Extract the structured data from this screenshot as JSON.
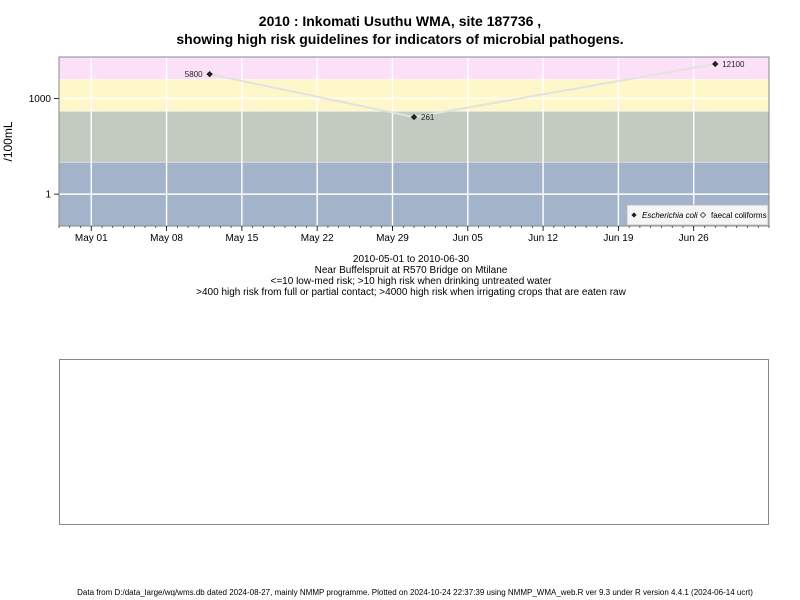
{
  "header": {
    "title_line1": "2010 : Inkomati Usuthu WMA, site 187736 ,",
    "title_line2": "showing high risk guidelines for indicators of microbial pathogens."
  },
  "chart_data": {
    "type": "line",
    "ylabel": "/100mL",
    "yscale": "log",
    "ylim": [
      0.1,
      20000
    ],
    "yticks": [
      {
        "label": "1000",
        "value": 1000
      },
      {
        "label": "1",
        "value": 1
      }
    ],
    "xlim": [
      "2010-04-28",
      "2010-07-03"
    ],
    "xticks": [
      {
        "label": "May 01",
        "date": "2010-05-01"
      },
      {
        "label": "May 08",
        "date": "2010-05-08"
      },
      {
        "label": "May 15",
        "date": "2010-05-15"
      },
      {
        "label": "May 22",
        "date": "2010-05-22"
      },
      {
        "label": "May 29",
        "date": "2010-05-29"
      },
      {
        "label": "Jun 05",
        "date": "2010-06-05"
      },
      {
        "label": "Jun 12",
        "date": "2010-06-12"
      },
      {
        "label": "Jun 19",
        "date": "2010-06-19"
      },
      {
        "label": "Jun 26",
        "date": "2010-06-26"
      }
    ],
    "bands": [
      {
        "from": 0.1,
        "to": 10,
        "color": "#a3b3ca"
      },
      {
        "from": 10,
        "to": 400,
        "color": "#c3cbc1"
      },
      {
        "from": 400,
        "to": 4000,
        "color": "#fdf7c9"
      },
      {
        "from": 4000,
        "to": 20000,
        "color": "#fbe0f8"
      }
    ],
    "series": [
      {
        "name": "Escherichia coli",
        "marker": "diamond-filled",
        "color": "#222222",
        "line_color": "#e2e2e2",
        "points": [
          {
            "date": "2010-05-12",
            "value": 5800,
            "label": "5800"
          },
          {
            "date": "2010-05-31",
            "value": 261,
            "label": "261"
          },
          {
            "date": "2010-06-28",
            "value": 12100,
            "label": "12100"
          }
        ]
      },
      {
        "name": "faecal coliforms",
        "marker": "diamond-open",
        "color": "#333333",
        "points": []
      }
    ],
    "legend_position": "bottom-right",
    "grid": true,
    "colors": {
      "grid": "#ffffff",
      "frame": "#888888"
    }
  },
  "captions": {
    "date_range": "2010-05-01 to 2010-06-30",
    "site_desc": "Near Buffelspruit at R570 Bridge on Mtilane",
    "guideline1": "<=10 low-med risk; >10 high risk when drinking untreated water",
    "guideline2": ">400 high risk from full or partial contact; >4000 high risk when irrigating crops that are eaten raw"
  },
  "footer": {
    "text": "Data from D:/data_large/wq/wms.db dated 2024-08-27, mainly NMMP programme. Plotted on 2024-10-24 22:37:39 using NMMP_WMA_web.R ver 9.3 under R version 4.4.1 (2024-06-14 ucrt)"
  }
}
